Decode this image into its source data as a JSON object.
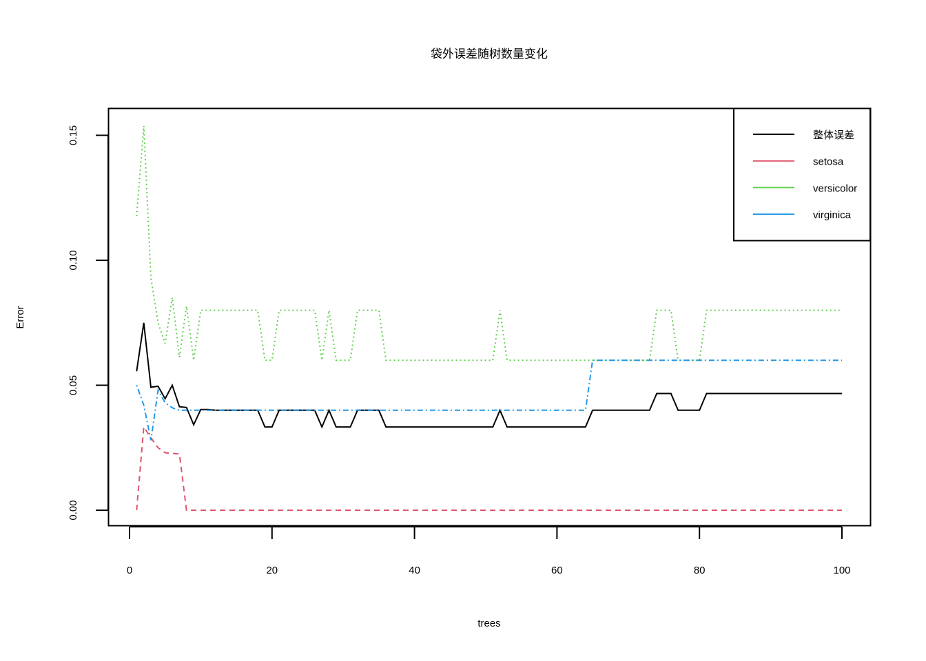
{
  "chart_data": {
    "type": "line",
    "title": "袋外误差随树数量变化",
    "xlabel": "trees",
    "ylabel": "Error",
    "xlim": [
      1,
      100
    ],
    "ylim": [
      0,
      0.154
    ],
    "x_ticks": [
      0,
      20,
      40,
      60,
      80,
      100
    ],
    "x_tick_labels": [
      "0",
      "20",
      "40",
      "60",
      "80",
      "100"
    ],
    "y_ticks": [
      0,
      0.05,
      0.1,
      0.15
    ],
    "y_tick_labels": [
      "0.00",
      "0.05",
      "0.10",
      "0.15"
    ],
    "grid": false,
    "legend_position": "top-right",
    "series": [
      {
        "name": "整体误差",
        "color": "#000000",
        "dash": "solid",
        "values": [
          0.0556,
          0.075,
          0.0492,
          0.0496,
          0.0446,
          0.05,
          0.0414,
          0.0411,
          0.0342,
          0.0403,
          0.0403,
          0.04,
          0.04,
          0.04,
          0.04,
          0.04,
          0.04,
          0.04,
          0.0333,
          0.0333,
          0.04,
          0.04,
          0.04,
          0.04,
          0.04,
          0.04,
          0.0333,
          0.04,
          0.0333,
          0.0333,
          0.0333,
          0.04,
          0.04,
          0.04,
          0.04,
          0.0333,
          0.0333,
          0.0333,
          0.0333,
          0.0333,
          0.0333,
          0.0333,
          0.0333,
          0.0333,
          0.0333,
          0.0333,
          0.0333,
          0.0333,
          0.0333,
          0.0333,
          0.0333,
          0.04,
          0.0333,
          0.0333,
          0.0333,
          0.0333,
          0.0333,
          0.0333,
          0.0333,
          0.0333,
          0.0333,
          0.0333,
          0.0333,
          0.0333,
          0.04,
          0.04,
          0.04,
          0.04,
          0.04,
          0.04,
          0.04,
          0.04,
          0.04,
          0.0467,
          0.0467,
          0.0467,
          0.04,
          0.04,
          0.04,
          0.04,
          0.0467,
          0.0467,
          0.0467,
          0.0467,
          0.0467,
          0.0467,
          0.0467,
          0.0467,
          0.0467,
          0.0467,
          0.0467,
          0.0467,
          0.0467,
          0.0467,
          0.0467,
          0.0467,
          0.0467,
          0.0467,
          0.0467,
          0.0467
        ]
      },
      {
        "name": "setosa",
        "color": "#DF536B",
        "dash": "dashed",
        "values": [
          0.0,
          0.0333,
          0.029,
          0.025,
          0.023,
          0.0227,
          0.0225,
          0.0,
          0.0,
          0.0,
          0.0,
          0.0,
          0.0,
          0.0,
          0.0,
          0.0,
          0.0,
          0.0,
          0.0,
          0.0,
          0.0,
          0.0,
          0.0,
          0.0,
          0.0,
          0.0,
          0.0,
          0.0,
          0.0,
          0.0,
          0.0,
          0.0,
          0.0,
          0.0,
          0.0,
          0.0,
          0.0,
          0.0,
          0.0,
          0.0,
          0.0,
          0.0,
          0.0,
          0.0,
          0.0,
          0.0,
          0.0,
          0.0,
          0.0,
          0.0,
          0.0,
          0.0,
          0.0,
          0.0,
          0.0,
          0.0,
          0.0,
          0.0,
          0.0,
          0.0,
          0.0,
          0.0,
          0.0,
          0.0,
          0.0,
          0.0,
          0.0,
          0.0,
          0.0,
          0.0,
          0.0,
          0.0,
          0.0,
          0.0,
          0.0,
          0.0,
          0.0,
          0.0,
          0.0,
          0.0,
          0.0,
          0.0,
          0.0,
          0.0,
          0.0,
          0.0,
          0.0,
          0.0,
          0.0,
          0.0,
          0.0,
          0.0,
          0.0,
          0.0,
          0.0,
          0.0,
          0.0,
          0.0,
          0.0,
          0.0
        ]
      },
      {
        "name": "versicolor",
        "color": "#61D04F",
        "dash": "dotted",
        "values": [
          0.1176,
          0.1538,
          0.093,
          0.075,
          0.0667,
          0.0851,
          0.0612,
          0.0816,
          0.06,
          0.08,
          0.08,
          0.08,
          0.08,
          0.08,
          0.08,
          0.08,
          0.08,
          0.08,
          0.06,
          0.06,
          0.08,
          0.08,
          0.08,
          0.08,
          0.08,
          0.08,
          0.06,
          0.08,
          0.06,
          0.06,
          0.06,
          0.08,
          0.08,
          0.08,
          0.08,
          0.06,
          0.06,
          0.06,
          0.06,
          0.06,
          0.06,
          0.06,
          0.06,
          0.06,
          0.06,
          0.06,
          0.06,
          0.06,
          0.06,
          0.06,
          0.06,
          0.08,
          0.06,
          0.06,
          0.06,
          0.06,
          0.06,
          0.06,
          0.06,
          0.06,
          0.06,
          0.06,
          0.06,
          0.06,
          0.06,
          0.06,
          0.06,
          0.06,
          0.06,
          0.06,
          0.06,
          0.06,
          0.06,
          0.08,
          0.08,
          0.08,
          0.06,
          0.06,
          0.06,
          0.06,
          0.08,
          0.08,
          0.08,
          0.08,
          0.08,
          0.08,
          0.08,
          0.08,
          0.08,
          0.08,
          0.08,
          0.08,
          0.08,
          0.08,
          0.08,
          0.08,
          0.08,
          0.08,
          0.08,
          0.08
        ]
      },
      {
        "name": "virginica",
        "color": "#2297E6",
        "dash": "dotdash",
        "values": [
          0.05,
          0.042,
          0.028,
          0.048,
          0.043,
          0.041,
          0.04,
          0.04,
          0.04,
          0.04,
          0.04,
          0.04,
          0.04,
          0.04,
          0.04,
          0.04,
          0.04,
          0.04,
          0.04,
          0.04,
          0.04,
          0.04,
          0.04,
          0.04,
          0.04,
          0.04,
          0.04,
          0.04,
          0.04,
          0.04,
          0.04,
          0.04,
          0.04,
          0.04,
          0.04,
          0.04,
          0.04,
          0.04,
          0.04,
          0.04,
          0.04,
          0.04,
          0.04,
          0.04,
          0.04,
          0.04,
          0.04,
          0.04,
          0.04,
          0.04,
          0.04,
          0.04,
          0.04,
          0.04,
          0.04,
          0.04,
          0.04,
          0.04,
          0.04,
          0.04,
          0.04,
          0.04,
          0.04,
          0.04,
          0.06,
          0.06,
          0.06,
          0.06,
          0.06,
          0.06,
          0.06,
          0.06,
          0.06,
          0.06,
          0.06,
          0.06,
          0.06,
          0.06,
          0.06,
          0.06,
          0.06,
          0.06,
          0.06,
          0.06,
          0.06,
          0.06,
          0.06,
          0.06,
          0.06,
          0.06,
          0.06,
          0.06,
          0.06,
          0.06,
          0.06,
          0.06,
          0.06,
          0.06,
          0.06,
          0.06
        ]
      }
    ]
  }
}
